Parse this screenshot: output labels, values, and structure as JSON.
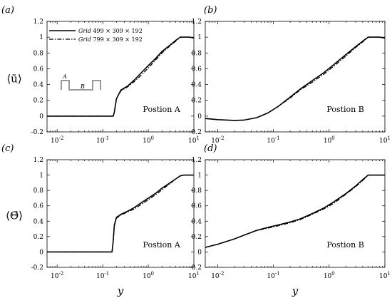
{
  "chart_data": [
    {
      "type": "line",
      "panel_label": "(a)",
      "position_label": "Postion A",
      "ylabel": "⟨ū⟩",
      "xlabel": "",
      "x_scale": "log",
      "xlim": [
        0.006,
        10
      ],
      "ylim": [
        -0.2,
        1.2
      ],
      "x_ticks": [
        "10^-2",
        "10^-1",
        "10^0",
        "10^1"
      ],
      "y_ticks": [
        "-0.2",
        "0",
        "0.2",
        "0.4",
        "0.6",
        "0.8",
        "1",
        "1.2"
      ],
      "legend": {
        "entries": [
          {
            "name": "Grid 499 × 309 × 192",
            "style": "solid"
          },
          {
            "name": "Grid 799 × 309 × 192",
            "style": "dashdot"
          }
        ],
        "placement": "top-left"
      },
      "inset": {
        "labels": [
          "A",
          "B"
        ]
      },
      "series": [
        {
          "name": "Grid 499 × 309 × 192",
          "style": "solid",
          "x": [
            0.006,
            0.17,
            0.18,
            0.2,
            0.25,
            0.35,
            0.5,
            0.7,
            1.0,
            1.5,
            2.0,
            3.0,
            4.0,
            5.0,
            6.0,
            8.0,
            10.0
          ],
          "y": [
            0,
            0.0,
            0.05,
            0.22,
            0.33,
            0.38,
            0.46,
            0.55,
            0.64,
            0.74,
            0.82,
            0.9,
            0.96,
            1.0,
            1.0,
            1.0,
            0.99
          ]
        },
        {
          "name": "Grid 799 × 309 × 192",
          "style": "dashdot",
          "x": [
            0.006,
            0.17,
            0.18,
            0.2,
            0.25,
            0.35,
            0.5,
            0.7,
            1.0,
            1.5,
            2.0,
            3.0,
            4.0,
            5.0,
            6.0,
            8.0,
            10.0
          ],
          "y": [
            0,
            0.0,
            0.05,
            0.22,
            0.32,
            0.37,
            0.44,
            0.52,
            0.61,
            0.72,
            0.8,
            0.89,
            0.95,
            1.0,
            1.0,
            1.0,
            0.99
          ]
        }
      ]
    },
    {
      "type": "line",
      "panel_label": "(b)",
      "position_label": "Postion B",
      "ylabel": "",
      "xlabel": "",
      "x_scale": "log",
      "xlim": [
        0.006,
        10
      ],
      "ylim": [
        -0.2,
        1.2
      ],
      "x_ticks": [
        "10^-2",
        "10^-1",
        "10^0",
        "10^1"
      ],
      "y_ticks": [
        "-0.2",
        "0",
        "0.2",
        "0.4",
        "0.6",
        "0.8",
        "1",
        "1.2"
      ],
      "series": [
        {
          "name": "Grid 499 × 309 × 192",
          "style": "solid",
          "x": [
            0.006,
            0.01,
            0.02,
            0.03,
            0.05,
            0.08,
            0.12,
            0.2,
            0.3,
            0.5,
            0.8,
            1.2,
            2.0,
            3.0,
            4.0,
            5.0,
            6.0,
            8.0,
            10.0
          ],
          "y": [
            -0.03,
            -0.045,
            -0.055,
            -0.05,
            -0.02,
            0.04,
            0.12,
            0.24,
            0.34,
            0.45,
            0.55,
            0.65,
            0.78,
            0.88,
            0.95,
            1.0,
            1.0,
            1.0,
            0.99
          ]
        },
        {
          "name": "Grid 799 × 309 × 192",
          "style": "dashdot",
          "x": [
            0.006,
            0.01,
            0.02,
            0.03,
            0.05,
            0.08,
            0.12,
            0.2,
            0.3,
            0.5,
            0.8,
            1.2,
            2.0,
            3.0,
            4.0,
            5.0,
            6.0,
            8.0,
            10.0
          ],
          "y": [
            -0.03,
            -0.045,
            -0.055,
            -0.05,
            -0.02,
            0.04,
            0.12,
            0.23,
            0.33,
            0.43,
            0.53,
            0.63,
            0.76,
            0.87,
            0.94,
            1.0,
            1.0,
            1.0,
            0.99
          ]
        }
      ]
    },
    {
      "type": "line",
      "panel_label": "(c)",
      "position_label": "Postion A",
      "ylabel": "⟨Θ̄⟩",
      "xlabel": "y",
      "x_scale": "log",
      "xlim": [
        0.006,
        10
      ],
      "ylim": [
        -0.2,
        1.2
      ],
      "x_ticks": [
        "10^-2",
        "10^-1",
        "10^0",
        "10^1"
      ],
      "y_ticks": [
        "-0.2",
        "0",
        "0.2",
        "0.4",
        "0.6",
        "0.8",
        "1",
        "1.2"
      ],
      "series": [
        {
          "name": "Grid 499 × 309 × 192",
          "style": "solid",
          "x": [
            0.006,
            0.16,
            0.17,
            0.18,
            0.2,
            0.25,
            0.35,
            0.5,
            0.7,
            1.0,
            1.5,
            2.0,
            3.0,
            4.0,
            5.0,
            6.0,
            8.0,
            10.0
          ],
          "y": [
            0,
            0.0,
            0.15,
            0.35,
            0.45,
            0.49,
            0.53,
            0.58,
            0.64,
            0.7,
            0.77,
            0.83,
            0.9,
            0.95,
            0.99,
            1.0,
            1.0,
            1.0
          ]
        },
        {
          "name": "Grid 799 × 309 × 192",
          "style": "dashdot",
          "x": [
            0.006,
            0.16,
            0.17,
            0.18,
            0.2,
            0.25,
            0.35,
            0.5,
            0.7,
            1.0,
            1.5,
            2.0,
            3.0,
            4.0,
            5.0,
            6.0,
            8.0,
            10.0
          ],
          "y": [
            0,
            0.0,
            0.15,
            0.34,
            0.44,
            0.48,
            0.52,
            0.56,
            0.62,
            0.68,
            0.75,
            0.81,
            0.89,
            0.95,
            0.99,
            1.0,
            1.0,
            1.0
          ]
        }
      ]
    },
    {
      "type": "line",
      "panel_label": "(d)",
      "position_label": "Postion B",
      "ylabel": "",
      "xlabel": "y",
      "x_scale": "log",
      "xlim": [
        0.006,
        10
      ],
      "ylim": [
        -0.2,
        1.2
      ],
      "x_ticks": [
        "10^-2",
        "10^-1",
        "10^0",
        "10^1"
      ],
      "y_ticks": [
        "-0.2",
        "0",
        "0.2",
        "0.4",
        "0.6",
        "0.8",
        "1",
        "1.2"
      ],
      "series": [
        {
          "name": "Grid 499 × 309 × 192",
          "style": "solid",
          "x": [
            0.006,
            0.01,
            0.02,
            0.03,
            0.05,
            0.08,
            0.12,
            0.2,
            0.3,
            0.5,
            0.8,
            1.2,
            2.0,
            3.0,
            4.0,
            5.0,
            6.0,
            8.0,
            10.0
          ],
          "y": [
            0.06,
            0.1,
            0.17,
            0.22,
            0.28,
            0.32,
            0.35,
            0.39,
            0.43,
            0.5,
            0.57,
            0.65,
            0.76,
            0.86,
            0.94,
            1.0,
            1.0,
            1.0,
            1.0
          ]
        },
        {
          "name": "Grid 799 × 309 × 192",
          "style": "dashdot",
          "x": [
            0.006,
            0.01,
            0.02,
            0.03,
            0.05,
            0.08,
            0.12,
            0.2,
            0.3,
            0.5,
            0.8,
            1.2,
            2.0,
            3.0,
            4.0,
            5.0,
            6.0,
            8.0,
            10.0
          ],
          "y": [
            0.06,
            0.1,
            0.17,
            0.22,
            0.28,
            0.31,
            0.34,
            0.38,
            0.42,
            0.49,
            0.56,
            0.63,
            0.75,
            0.85,
            0.93,
            1.0,
            1.0,
            1.0,
            1.0
          ]
        }
      ]
    }
  ]
}
